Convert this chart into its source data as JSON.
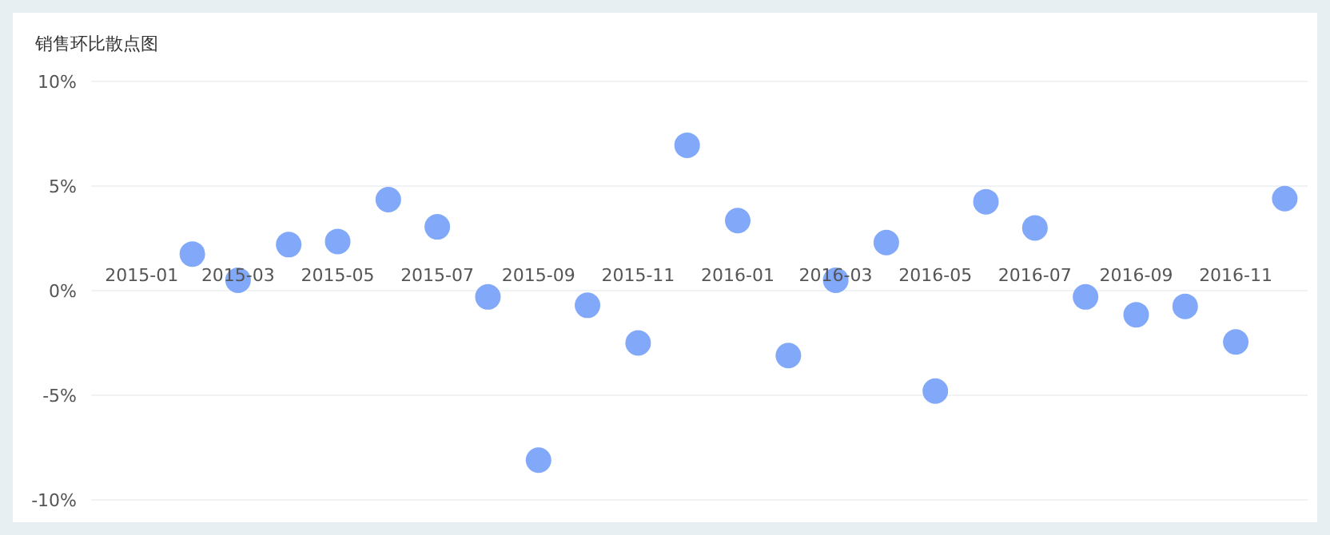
{
  "chart_data": {
    "type": "scatter",
    "title": "销售环比散点图",
    "x": [
      "2015-02",
      "2015-03",
      "2015-04",
      "2015-05",
      "2015-06",
      "2015-07",
      "2015-08",
      "2015-09",
      "2015-10",
      "2015-11",
      "2015-12",
      "2016-01",
      "2016-02",
      "2016-03",
      "2016-04",
      "2016-05",
      "2016-06",
      "2016-07",
      "2016-08",
      "2016-09",
      "2016-10",
      "2016-11",
      "2016-12"
    ],
    "series": [
      {
        "color": "#82a9f9",
        "values": [
          1.75,
          0.5,
          2.2,
          2.35,
          4.35,
          3.05,
          -0.3,
          -8.1,
          -0.7,
          -2.5,
          6.95,
          3.35,
          -3.1,
          0.5,
          2.3,
          -4.8,
          4.25,
          3.0,
          -0.3,
          -1.15,
          -0.75,
          -2.45,
          4.4
        ]
      }
    ],
    "xlim": [
      "2014-12-01",
      "2016-12-15"
    ],
    "xticks": [
      {
        "value": "2015-01",
        "label": "2015-01"
      },
      {
        "value": "2015-03",
        "label": "2015-03"
      },
      {
        "value": "2015-05",
        "label": "2015-05"
      },
      {
        "value": "2015-07",
        "label": "2015-07"
      },
      {
        "value": "2015-09",
        "label": "2015-09"
      },
      {
        "value": "2015-11",
        "label": "2015-11"
      },
      {
        "value": "2016-01",
        "label": "2016-01"
      },
      {
        "value": "2016-03",
        "label": "2016-03"
      },
      {
        "value": "2016-05",
        "label": "2016-05"
      },
      {
        "value": "2016-07",
        "label": "2016-07"
      },
      {
        "value": "2016-09",
        "label": "2016-09"
      },
      {
        "value": "2016-11",
        "label": "2016-11"
      }
    ],
    "ylim": [
      -10,
      10
    ],
    "yticks": [
      {
        "value": -10,
        "label": "-10%"
      },
      {
        "value": -5,
        "label": "-5%"
      },
      {
        "value": 0,
        "label": "0%"
      },
      {
        "value": 5,
        "label": "5%"
      },
      {
        "value": 10,
        "label": "10%"
      }
    ],
    "grid": "y",
    "marker": "circle"
  }
}
